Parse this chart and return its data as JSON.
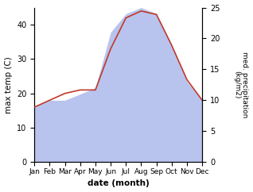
{
  "months": [
    "Jan",
    "Feb",
    "Mar",
    "Apr",
    "May",
    "Jun",
    "Jul",
    "Aug",
    "Sep",
    "Oct",
    "Nov",
    "Dec"
  ],
  "month_positions": [
    0,
    1,
    2,
    3,
    4,
    5,
    6,
    7,
    8,
    9,
    10,
    11
  ],
  "max_temp": [
    16,
    18,
    20,
    21,
    21,
    33,
    42,
    44,
    43,
    34,
    24,
    18
  ],
  "precipitation": [
    9,
    10,
    10,
    11,
    12,
    21,
    24,
    25,
    24,
    19,
    13,
    10
  ],
  "temp_color": "#c0392b",
  "precip_fill_color": "#b8c4ee",
  "temp_ylim": [
    0,
    45
  ],
  "precip_ylim": [
    0,
    25
  ],
  "temp_yticks": [
    0,
    10,
    20,
    30,
    40
  ],
  "precip_yticks": [
    0,
    5,
    10,
    15,
    20,
    25
  ],
  "xlabel": "date (month)",
  "ylabel_left": "max temp (C)",
  "ylabel_right": "med. precipitation\n(kg/m2)",
  "figsize": [
    3.18,
    2.42
  ],
  "dpi": 100
}
